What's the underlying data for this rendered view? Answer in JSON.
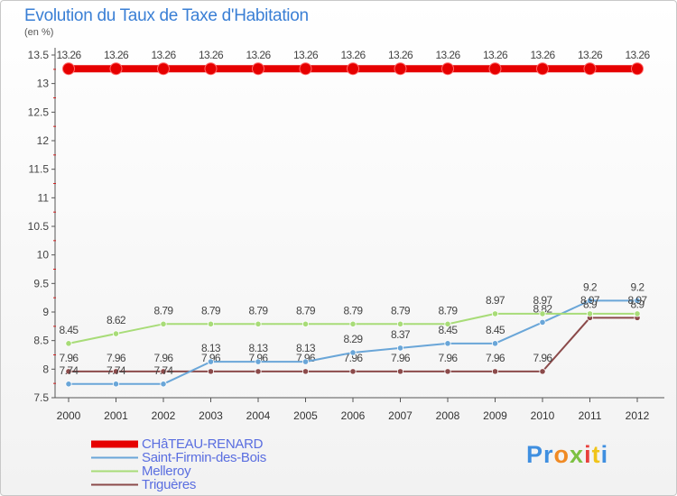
{
  "title": "Evolution du Taux de Taxe d'Habitation",
  "subtitle": "(en %)",
  "chart_data": {
    "type": "line",
    "title": "Evolution du Taux de Taxe d'Habitation",
    "ylabel": "(en %)",
    "xlabel": "",
    "categories": [
      "2000",
      "2001",
      "2002",
      "2003",
      "2004",
      "2005",
      "2006",
      "2007",
      "2008",
      "2009",
      "2010",
      "2011",
      "2012"
    ],
    "ylim": [
      7.5,
      13.5
    ],
    "yticks": [
      7.5,
      8,
      8.5,
      9,
      9.5,
      10,
      10.5,
      11,
      11.5,
      12,
      12.5,
      13,
      13.5
    ],
    "ytick_labels": [
      "7.5",
      "8",
      "8.5",
      "9",
      "9.5",
      "10",
      "10.5",
      "11",
      "11.5",
      "12",
      "12.5",
      "13",
      "13.5"
    ],
    "series": [
      {
        "name": "CHâTEAU-RENARD",
        "color": "#e60000",
        "values": [
          13.26,
          13.26,
          13.26,
          13.26,
          13.26,
          13.26,
          13.26,
          13.26,
          13.26,
          13.26,
          13.26,
          13.26,
          13.26
        ],
        "labels": [
          "13.26",
          "13.26",
          "13.26",
          "13.26",
          "13.26",
          "13.26",
          "13.26",
          "13.26",
          "13.26",
          "13.26",
          "13.26",
          "13.26",
          "13.26"
        ]
      },
      {
        "name": "Saint-Firmin-des-Bois",
        "color": "#6aa6d8",
        "values": [
          7.74,
          7.74,
          7.74,
          8.13,
          8.13,
          8.13,
          8.29,
          8.37,
          8.45,
          8.45,
          8.82,
          9.2,
          9.2
        ],
        "labels": [
          "7.74",
          "7.74",
          "7.74",
          "8.13",
          "8.13",
          "8.13",
          "8.29",
          "8.37",
          "8.45",
          "8.45",
          "8.82",
          "9.2",
          "9.2"
        ]
      },
      {
        "name": "Melleroy",
        "color": "#a8dc78",
        "values": [
          8.45,
          8.62,
          8.79,
          8.79,
          8.79,
          8.79,
          8.79,
          8.79,
          8.79,
          8.97,
          8.97,
          8.97,
          8.97
        ],
        "labels": [
          "8.45",
          "8.62",
          "8.79",
          "8.79",
          "8.79",
          "8.79",
          "8.79",
          "8.79",
          "8.79",
          "8.97",
          "8.97",
          "8.97",
          "8.97"
        ]
      },
      {
        "name": "Triguères",
        "color": "#8b4a4a",
        "values": [
          7.96,
          7.96,
          7.96,
          7.96,
          7.96,
          7.96,
          7.96,
          7.96,
          7.96,
          7.96,
          7.96,
          8.9,
          8.9
        ],
        "labels": [
          "7.96",
          "7.96",
          "7.96",
          "7.96",
          "7.96",
          "7.96",
          "7.96",
          "7.96",
          "7.96",
          "7.96",
          "7.96",
          "8.9",
          "8.9"
        ]
      }
    ],
    "legend_position": "bottom-left"
  },
  "logo": {
    "text": "Proxiti",
    "parts": [
      "Pr",
      "o",
      "x",
      "i",
      "t",
      "i"
    ]
  }
}
